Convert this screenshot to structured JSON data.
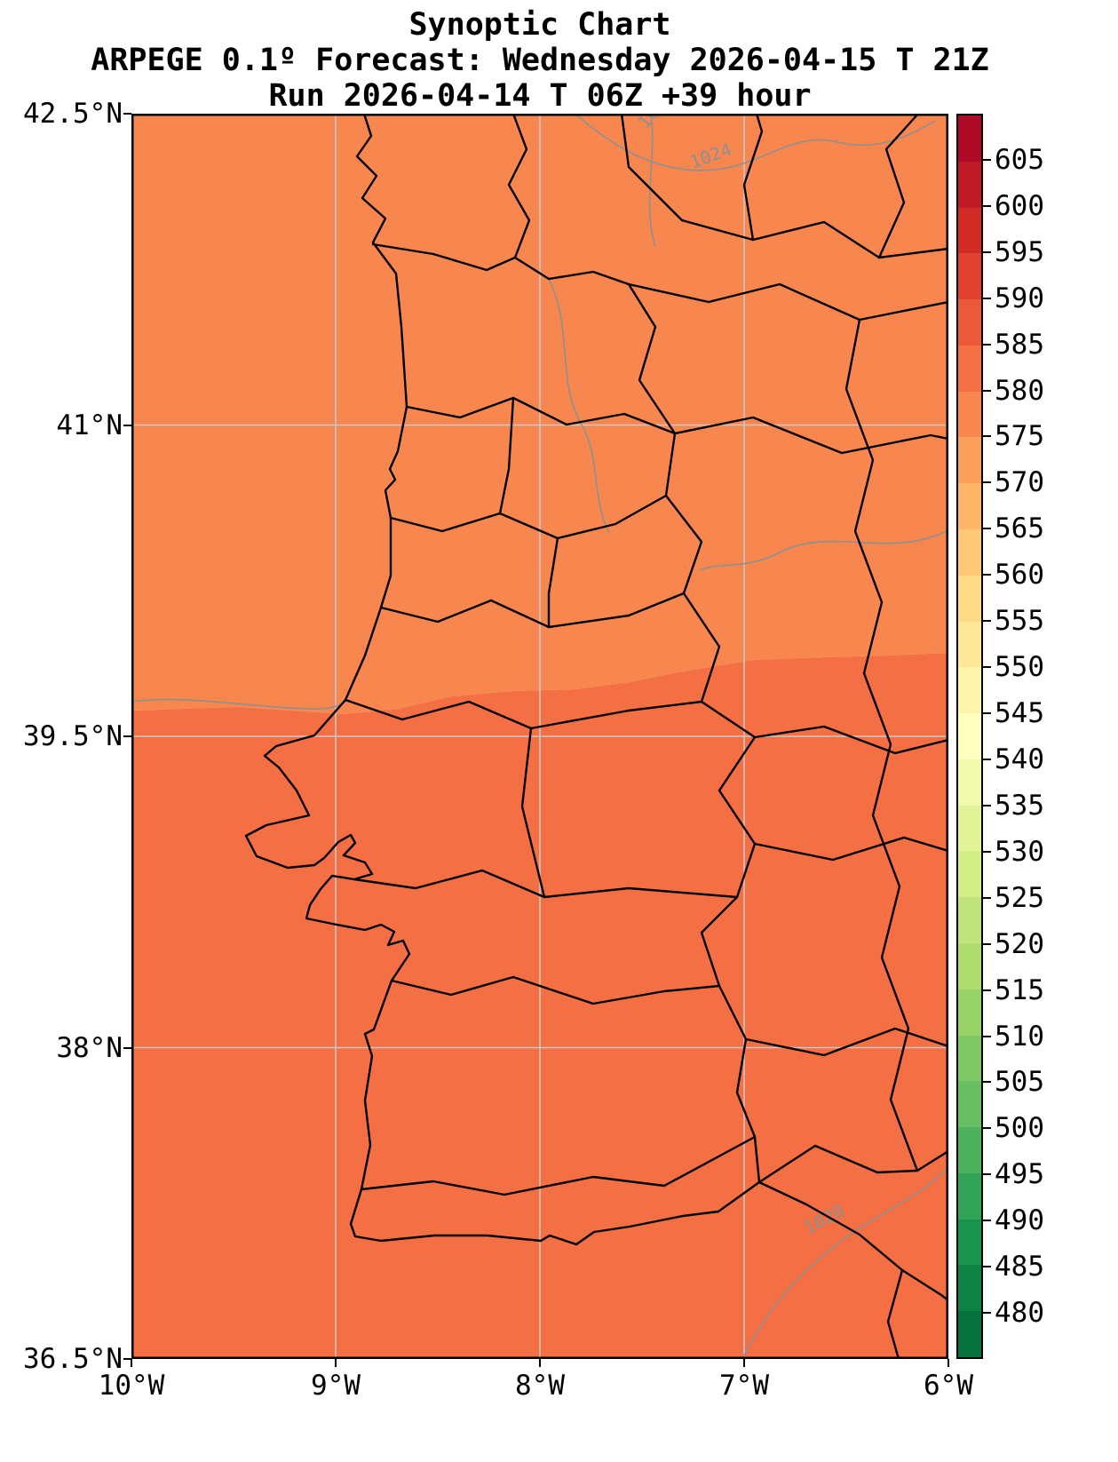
{
  "chart_data": {
    "type": "heatmap",
    "title": "Synoptic Chart",
    "subtitle": "ARPEGE 0.1º Forecast: Wednesday 2026-04-15 T 21Z",
    "run_info": "Run 2026-04-14 T 06Z +39 hour",
    "x_axis": {
      "ticks": [
        "10°W",
        "9°W",
        "8°W",
        "7°W",
        "6°W"
      ],
      "range_deg": [
        -10,
        -6
      ],
      "unit": "longitude"
    },
    "y_axis": {
      "ticks": [
        "42.5°N",
        "41°N",
        "39.5°N",
        "38°N",
        "36.5°N"
      ],
      "range_deg": [
        36.5,
        42.5
      ],
      "unit": "latitude"
    },
    "grid": true,
    "colorbar": {
      "min": 475,
      "max": 610,
      "band_step": 5,
      "ticks": [
        605,
        600,
        595,
        590,
        585,
        580,
        575,
        570,
        565,
        560,
        555,
        550,
        545,
        540,
        535,
        530,
        525,
        520,
        515,
        510,
        505,
        500,
        495,
        490,
        485,
        480
      ],
      "colormap_stops": [
        "#006837",
        "#1a9850",
        "#66bd63",
        "#a6d96a",
        "#d9ef8b",
        "#ffffbf",
        "#fee08b",
        "#fdae61",
        "#f46d43",
        "#d73027",
        "#a50026"
      ]
    },
    "shaded_field": {
      "visible_bands": [
        [
          575,
          580
        ],
        [
          580,
          585
        ]
      ],
      "band_boundary_latitude_approx": 39.6
    },
    "isobar_labels": [
      "1024",
      "1024",
      "1020"
    ]
  },
  "colors": {
    "grid": "#c8c8c8",
    "boundary": "#000000",
    "isobar": "#8f8f8f",
    "spine": "#000000",
    "background": "#ffffff"
  }
}
